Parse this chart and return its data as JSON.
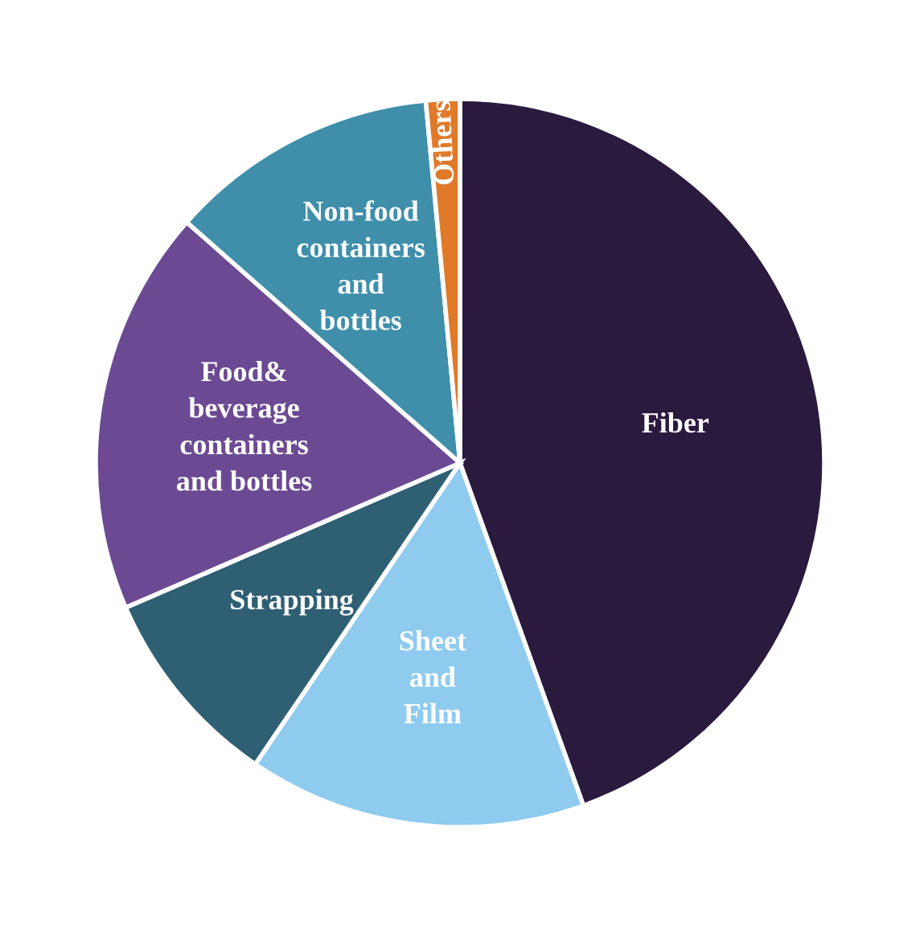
{
  "chart_data": {
    "type": "pie",
    "categories": [
      "Fiber",
      "Sheet\nand\nFilm",
      "Strapping",
      "Food&\nbeverage\ncontainers\nand bottles",
      "Non-food\ncontainers\nand\nbottles",
      "Others"
    ],
    "values": [
      44.5,
      15,
      9,
      18,
      12,
      1.5
    ],
    "colors": [
      "#2a1a3e",
      "#8ecbef",
      "#2f5f73",
      "#6b4a93",
      "#3f8fab",
      "#e07a2a"
    ],
    "legend": false
  }
}
